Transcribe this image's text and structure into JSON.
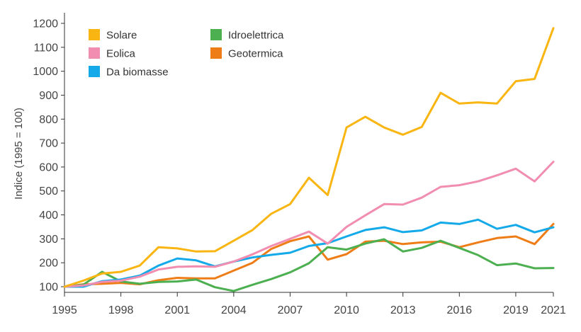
{
  "chart_data": {
    "type": "line",
    "title": "",
    "xlabel": "",
    "ylabel": "Indice (1995 = 100)",
    "xlim": [
      1995,
      2021
    ],
    "ylim": [
      100,
      1200
    ],
    "x_ticks": [
      1995,
      1998,
      2001,
      2004,
      2007,
      2010,
      2013,
      2016,
      2019,
      2021
    ],
    "y_ticks": [
      100,
      200,
      300,
      400,
      500,
      600,
      700,
      800,
      900,
      1000,
      1100,
      1200
    ],
    "grid": false,
    "legend_position": "top-left",
    "x": [
      1995,
      1996,
      1997,
      1998,
      1999,
      2000,
      2001,
      2002,
      2003,
      2004,
      2005,
      2006,
      2007,
      2008,
      2009,
      2010,
      2011,
      2012,
      2013,
      2014,
      2015,
      2016,
      2017,
      2018,
      2019,
      2020,
      2021
    ],
    "series": [
      {
        "name": "Solare",
        "color": "#f9b511",
        "values": [
          100,
          125,
          155,
          162,
          188,
          265,
          260,
          247,
          248,
          292,
          337,
          405,
          445,
          555,
          483,
          765,
          810,
          765,
          735,
          767,
          910,
          865,
          870,
          865,
          958,
          968,
          1180
        ]
      },
      {
        "name": "Eolica",
        "color": "#f28db2",
        "values": [
          100,
          105,
          120,
          125,
          142,
          172,
          183,
          185,
          183,
          205,
          235,
          270,
          300,
          330,
          280,
          350,
          398,
          445,
          443,
          472,
          517,
          524,
          540,
          565,
          593,
          540,
          622
        ]
      },
      {
        "name": "Da biomasse",
        "color": "#14a9e8",
        "values": [
          100,
          100,
          123,
          130,
          146,
          188,
          218,
          210,
          185,
          205,
          222,
          233,
          242,
          270,
          282,
          310,
          337,
          348,
          328,
          335,
          368,
          362,
          380,
          342,
          358,
          327,
          348
        ]
      },
      {
        "name": "Idroelettrica",
        "color": "#4caf50",
        "values": [
          100,
          108,
          162,
          122,
          112,
          120,
          122,
          130,
          98,
          82,
          108,
          132,
          160,
          198,
          265,
          255,
          280,
          298,
          247,
          262,
          292,
          262,
          232,
          190,
          197,
          177,
          178
        ]
      },
      {
        "name": "Geotermica",
        "color": "#ef7d17",
        "values": [
          100,
          110,
          112,
          116,
          110,
          127,
          137,
          135,
          135,
          167,
          200,
          258,
          290,
          310,
          213,
          236,
          288,
          292,
          278,
          285,
          288,
          265,
          285,
          303,
          310,
          278,
          362
        ]
      }
    ]
  }
}
